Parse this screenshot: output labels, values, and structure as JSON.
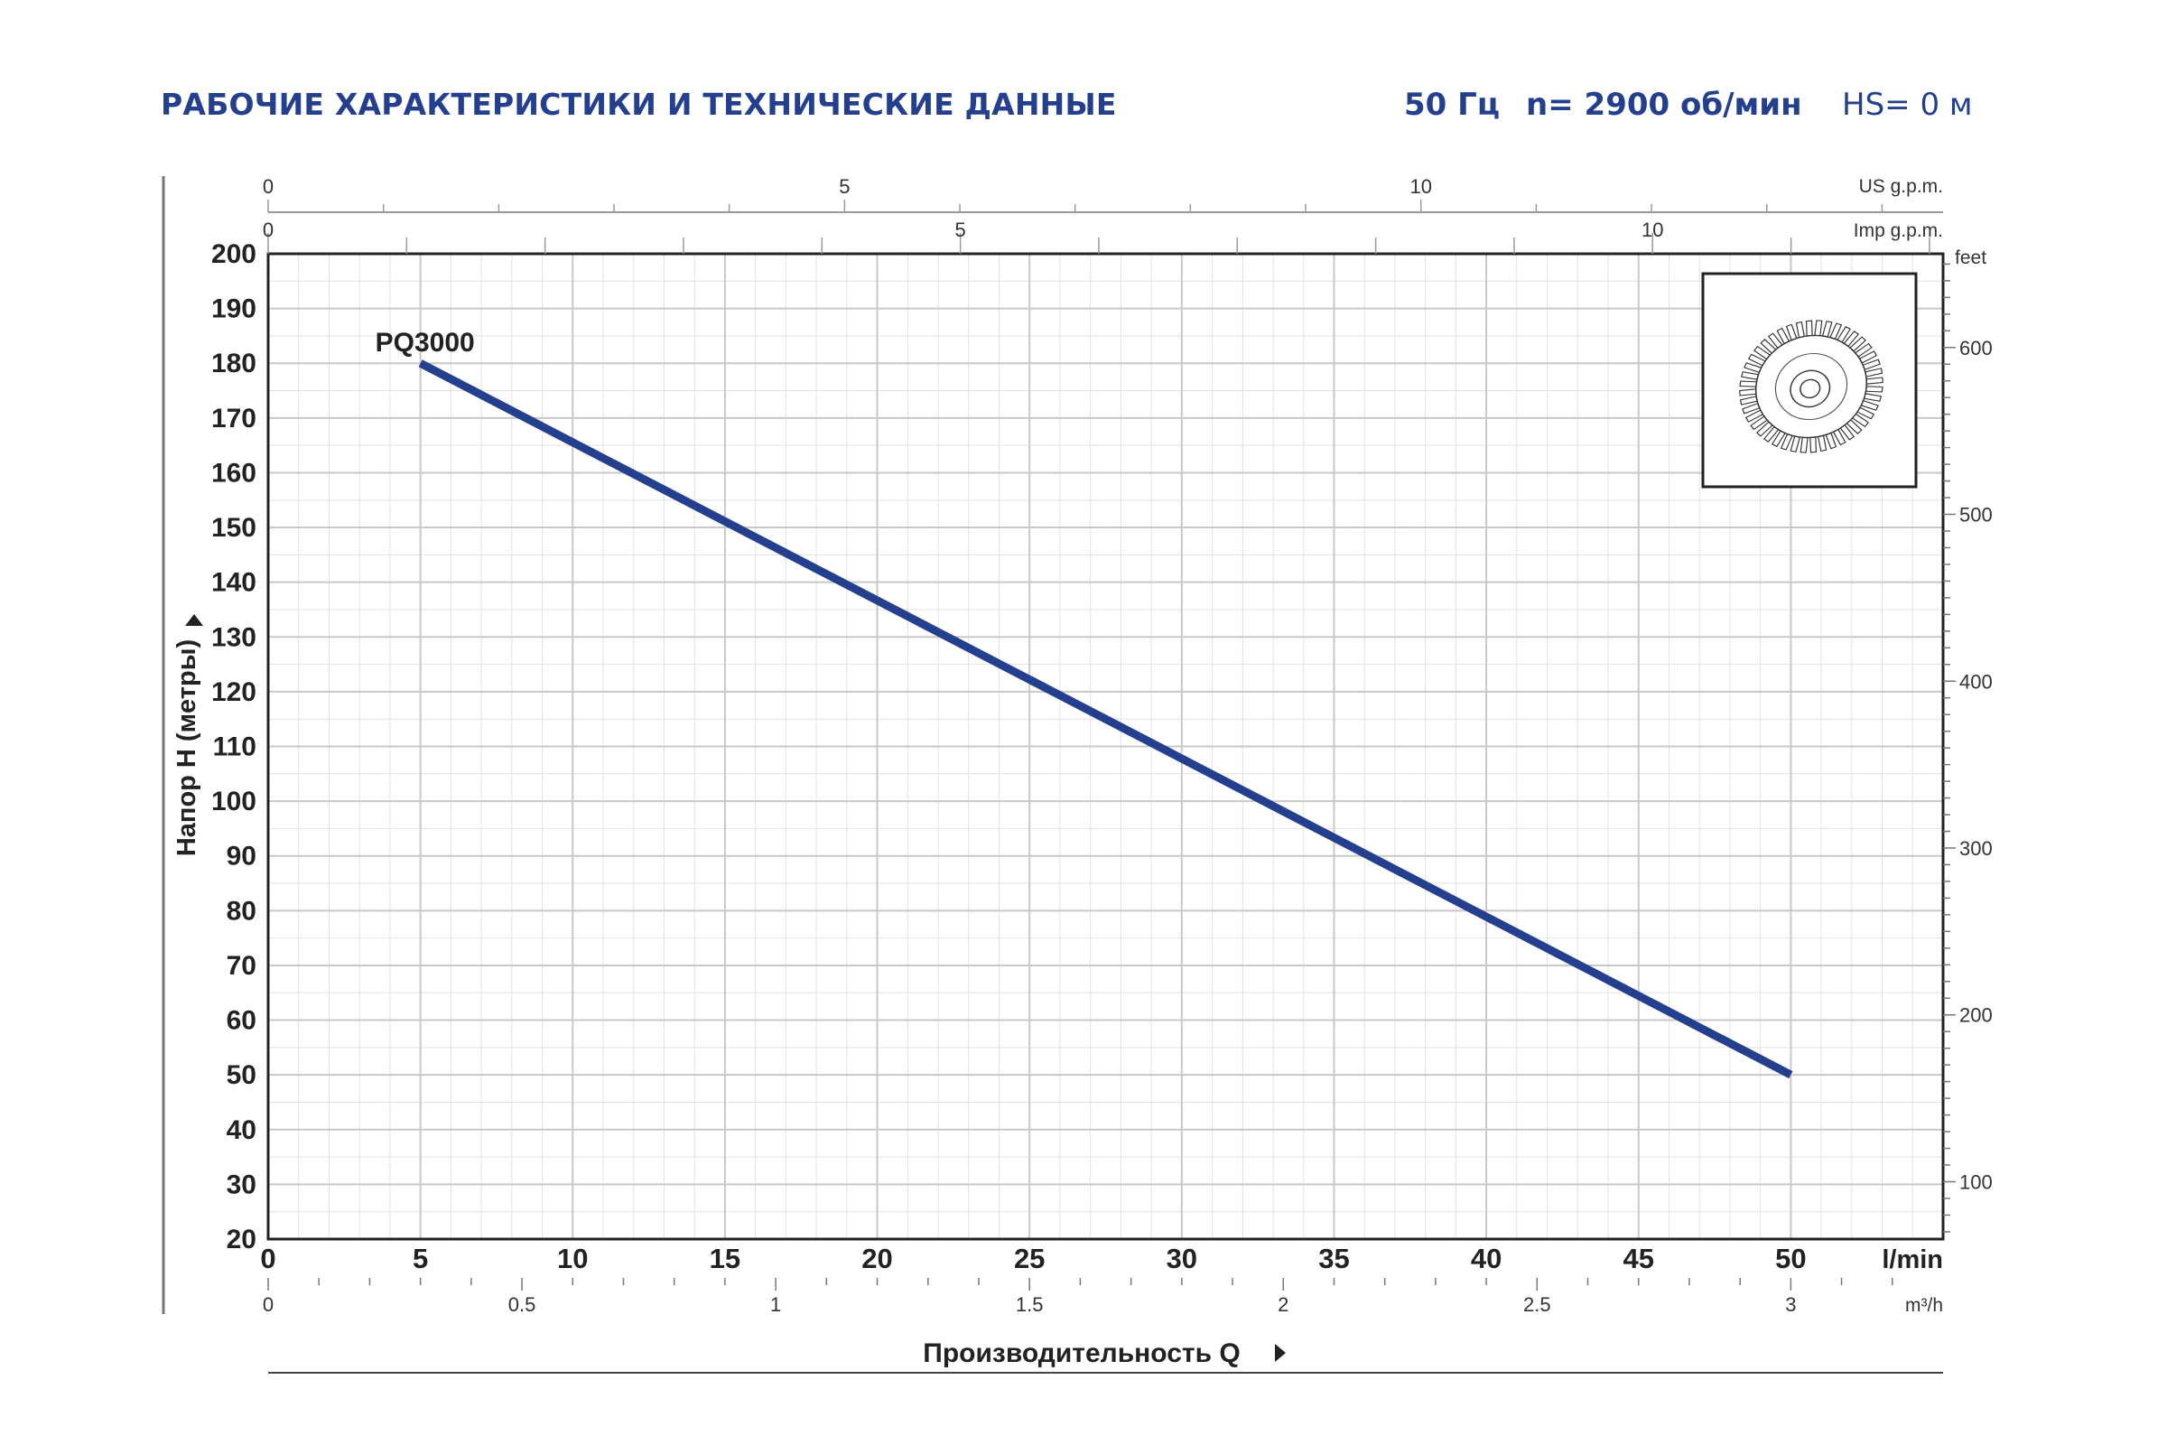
{
  "header": {
    "title": "РАБОЧИЕ ХАРАКТЕРИСТИКИ И ТЕХНИЧЕСКИЕ ДАННЫЕ",
    "frequency": "50 Гц",
    "speed": "n= 2900 об/мин",
    "suction_head": "HS= 0 м"
  },
  "colors": {
    "accent": "#243f8e",
    "curve": "#243f8e",
    "grid_major": "#c8c8c8",
    "grid_minor": "#e2e2e2",
    "axis": "#222222"
  },
  "illustration": {
    "icon": "impeller-icon"
  },
  "chart_data": {
    "type": "line",
    "x": [
      5,
      50
    ],
    "series": [
      {
        "name": "PQ3000",
        "values": [
          180,
          50
        ]
      }
    ],
    "xlabel": "Производительность Q",
    "ylabel": "Напор H (метры)",
    "xlim": [
      0,
      55
    ],
    "ylim": [
      20,
      200
    ],
    "x_unit": "l/min",
    "x_ticks": [
      0,
      5,
      10,
      15,
      20,
      25,
      30,
      35,
      40,
      45,
      50
    ],
    "y_ticks": [
      20,
      30,
      40,
      50,
      60,
      70,
      80,
      90,
      100,
      110,
      120,
      130,
      140,
      150,
      160,
      170,
      180,
      190,
      200
    ],
    "grid": true,
    "secondary_axes": {
      "top_us": {
        "unit": "US g.p.m.",
        "ticks": [
          0,
          5,
          10
        ]
      },
      "top_imp": {
        "unit": "Imp g.p.m.",
        "ticks": [
          0,
          5,
          10
        ]
      },
      "right_feet": {
        "unit": "feet",
        "ticks": [
          100,
          200,
          300,
          400,
          500,
          600
        ]
      },
      "bottom_m3h": {
        "unit": "m³/h",
        "ticks": [
          "0",
          "0.5",
          "1",
          "1.5",
          "2",
          "2.5",
          "3"
        ]
      }
    }
  }
}
